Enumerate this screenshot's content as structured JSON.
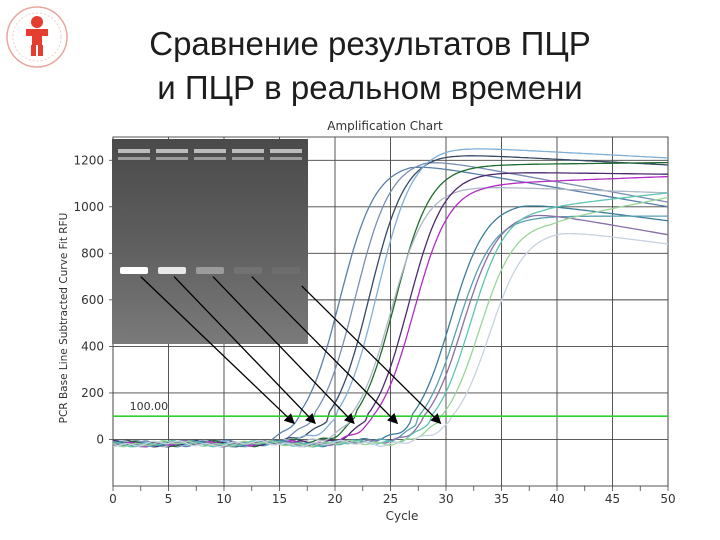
{
  "slide": {
    "title_line1": "Сравнение результатов ПЦР",
    "title_line2": "и ПЦР в реальном времени"
  },
  "logo": {
    "icon": "child-figure-logo-icon",
    "colors": {
      "figure": "#e53d2f",
      "ring": "#e53d2f"
    }
  },
  "chart_data": {
    "type": "line",
    "title": "Amplification Chart",
    "xlabel": "Cycle",
    "ylabel": "PCR Base Line Subtracted Curve Fit RFU",
    "xlim": [
      0,
      50
    ],
    "ylim": [
      -200,
      1300
    ],
    "xticks": [
      0,
      5,
      10,
      15,
      20,
      25,
      30,
      35,
      40,
      45,
      50
    ],
    "xtick_labels": [
      "0",
      "5",
      "10",
      "15",
      "20",
      "25",
      "30",
      "35",
      "40",
      "45",
      "50"
    ],
    "yticks": [
      0,
      200,
      400,
      600,
      800,
      1000,
      1200
    ],
    "ytick_labels": [
      "0",
      "200",
      "400",
      "600",
      "800",
      "1000",
      "1200"
    ],
    "grid": true,
    "threshold": {
      "value": 100,
      "label": "100.00",
      "color": "#2fd12f"
    },
    "series": [
      {
        "color": "#5a7fa8",
        "ct": 16.8,
        "plateau": 1190,
        "tail": 1000
      },
      {
        "color": "#7a8fb2",
        "ct": 18.2,
        "plateau": 1210,
        "tail": 1020
      },
      {
        "color": "#364a64",
        "ct": 19.5,
        "plateau": 1230,
        "tail": 1180
      },
      {
        "color": "#7faed6",
        "ct": 20.2,
        "plateau": 1260,
        "tail": 1210
      },
      {
        "color": "#1f6b2f",
        "ct": 21.8,
        "plateau": 1180,
        "tail": 1190
      },
      {
        "color": "#b0b8c8",
        "ct": 21.4,
        "plateau": 1090,
        "tail": 1060
      },
      {
        "color": "#4b2b6e",
        "ct": 23.0,
        "plateau": 1150,
        "tail": 1140
      },
      {
        "color": "#b02cc4",
        "ct": 23.5,
        "plateau": 1100,
        "tail": 1130
      },
      {
        "color": "#3c7d9a",
        "ct": 26.8,
        "plateau": 1020,
        "tail": 940
      },
      {
        "color": "#5aa0b0",
        "ct": 27.4,
        "plateau": 960,
        "tail": 960
      },
      {
        "color": "#8a6fa8",
        "ct": 27.9,
        "plateau": 980,
        "tail": 880
      },
      {
        "color": "#5fc4b0",
        "ct": 28.6,
        "plateau": 1000,
        "tail": 1060
      },
      {
        "color": "#9ad49a",
        "ct": 29.4,
        "plateau": 940,
        "tail": 1040
      },
      {
        "color": "#c8d2e0",
        "ct": 30.3,
        "plateau": 900,
        "tail": 840
      }
    ],
    "arrows": [
      {
        "from_cycle": 2.5,
        "from_rfu": 700,
        "to_cycle": 16.3,
        "to_rfu": 70
      },
      {
        "from_cycle": 5.5,
        "from_rfu": 700,
        "to_cycle": 18.2,
        "to_rfu": 70
      },
      {
        "from_cycle": 9.0,
        "from_rfu": 700,
        "to_cycle": 21.7,
        "to_rfu": 70
      },
      {
        "from_cycle": 12.5,
        "from_rfu": 700,
        "to_cycle": 25.6,
        "to_rfu": 70
      },
      {
        "from_cycle": 17.0,
        "from_rfu": 660,
        "to_cycle": 29.5,
        "to_rfu": 70
      }
    ]
  },
  "gel": {
    "bands": [
      {
        "lane": 1,
        "intensity": 1.0
      },
      {
        "lane": 2,
        "intensity": 0.85
      },
      {
        "lane": 3,
        "intensity": 0.35
      },
      {
        "lane": 4,
        "intensity": 0.08
      },
      {
        "lane": 5,
        "intensity": 0.05
      }
    ]
  }
}
